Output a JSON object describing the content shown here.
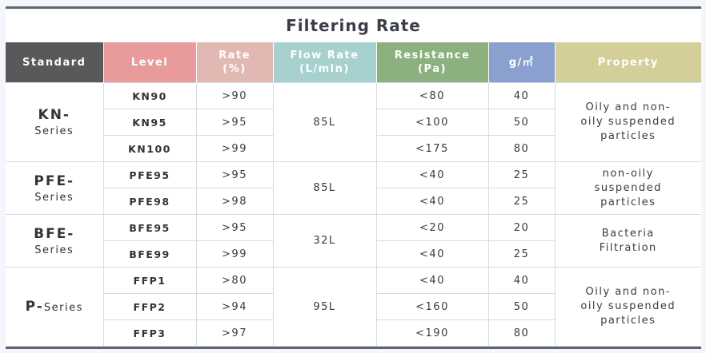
{
  "title": "Filtering Rate",
  "colors": {
    "standard": "#58595b",
    "level": "#e99b9b",
    "rate": "#e2b8b2",
    "flow": "#a6d1cf",
    "resistance": "#8cb17f",
    "gsm": "#8aa0cf",
    "property": "#d4cf98"
  },
  "headers": {
    "standard": "Standard",
    "level": "Level",
    "rate_l1": "Rate",
    "rate_l2": "(%)",
    "flow_l1": "Flow Rate",
    "flow_l2": "(L/min)",
    "resistance_l1": "Resistance",
    "resistance_l2": "(Pa)",
    "gsm_base": "g/㎡",
    "property": "Property"
  },
  "groups": [
    {
      "std_main": "KN-",
      "std_sub": "Series",
      "flow": "85L",
      "property": [
        "Oily and non-",
        "oily suspended",
        "particles"
      ],
      "rows": [
        {
          "level": "KN90",
          "rate": ">90",
          "resistance": "<80",
          "gsm": "40"
        },
        {
          "level": "KN95",
          "rate": ">95",
          "resistance": "<100",
          "gsm": "50"
        },
        {
          "level": "KN100",
          "rate": ">99",
          "resistance": "<175",
          "gsm": "80"
        }
      ]
    },
    {
      "std_main": "PFE-",
      "std_sub": "Series",
      "flow": "85L",
      "property": [
        "non-oily",
        "suspended",
        "particles"
      ],
      "rows": [
        {
          "level": "PFE95",
          "rate": ">95",
          "resistance": "<40",
          "gsm": "25"
        },
        {
          "level": "PFE98",
          "rate": ">98",
          "resistance": "<40",
          "gsm": "25"
        }
      ]
    },
    {
      "std_main": "BFE-",
      "std_sub": "Series",
      "flow": "32L",
      "property": [
        "Bacteria",
        "Filtration"
      ],
      "rows": [
        {
          "level": "BFE95",
          "rate": ">95",
          "resistance": "<20",
          "gsm": "20"
        },
        {
          "level": "BFE99",
          "rate": ">99",
          "resistance": "<40",
          "gsm": "25"
        }
      ]
    },
    {
      "std_main": "P-",
      "std_sub": "Series",
      "flow": "95L",
      "property": [
        "Oily and non-",
        "oily suspended",
        "particles"
      ],
      "rows": [
        {
          "level": "FFP1",
          "rate": ">80",
          "resistance": "<40",
          "gsm": "40"
        },
        {
          "level": "FFP2",
          "rate": ">94",
          "resistance": "<160",
          "gsm": "50"
        },
        {
          "level": "FFP3",
          "rate": ">97",
          "resistance": "<190",
          "gsm": "80"
        }
      ]
    }
  ]
}
